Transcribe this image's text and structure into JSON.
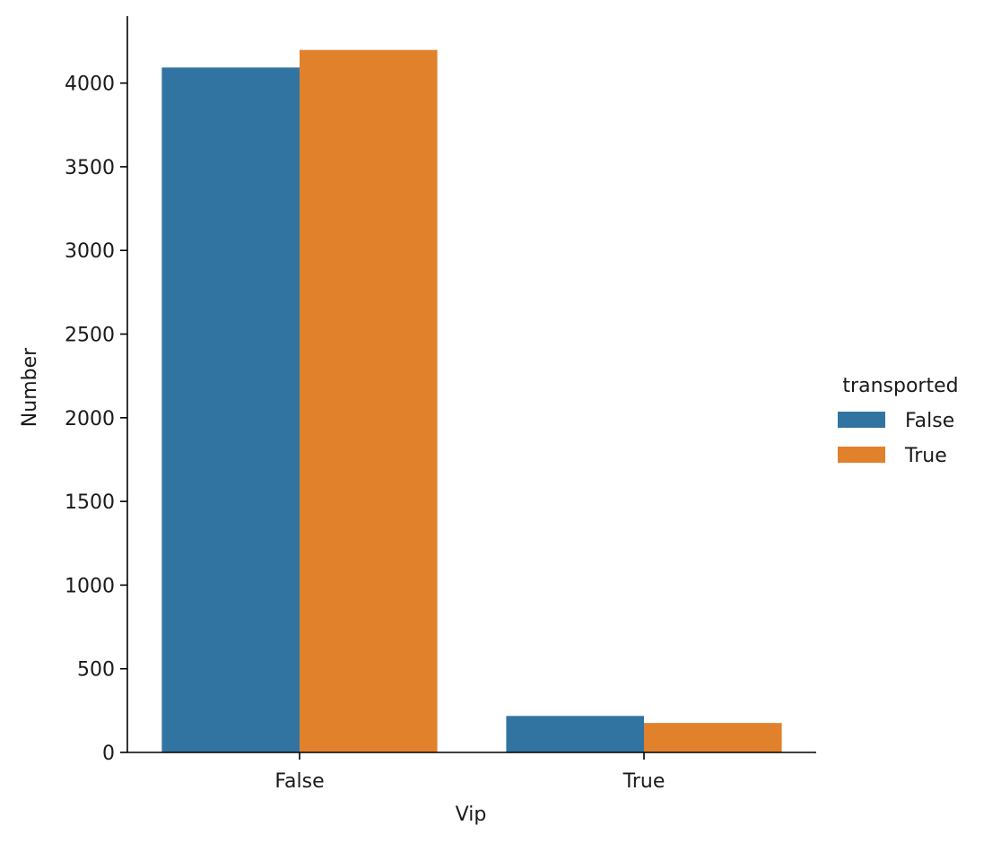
{
  "chart_data": {
    "type": "bar",
    "title": "",
    "xlabel": "Vip",
    "ylabel": "Number",
    "categories": [
      "False",
      "True"
    ],
    "series": [
      {
        "name": "False",
        "color": "#3274a1",
        "values": [
          4093,
          218
        ]
      },
      {
        "name": "True",
        "color": "#e1812c",
        "values": [
          4198,
          176
        ]
      }
    ],
    "ylim": [
      0,
      4400
    ],
    "yticks": [
      0,
      500,
      1000,
      1500,
      2000,
      2500,
      3000,
      3500,
      4000
    ],
    "legend": {
      "title": "transported",
      "placement": "center-right"
    },
    "grid": false
  }
}
